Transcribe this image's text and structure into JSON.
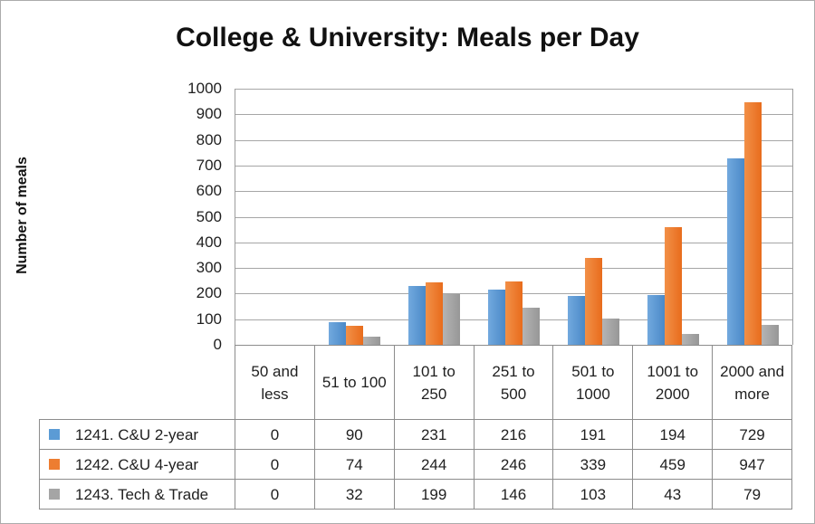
{
  "chart_data": {
    "type": "bar",
    "title": "College & University: Meals per Day",
    "ylabel": "Number of meals",
    "ylim": [
      0,
      1000
    ],
    "ytick_step": 100,
    "grid": "horizontal",
    "legend_position": "data-table-left",
    "categories": [
      "50 and less",
      "51 to 100",
      "101 to 250",
      "251 to 500",
      "501 to 1000",
      "1001 to 2000",
      "2000 and more"
    ],
    "series": [
      {
        "name": "1241. C&U 2-year",
        "color": "#5B9BD5",
        "color_light": "#72A9DE",
        "color_dark": "#4A89C8",
        "values": [
          0,
          90,
          231,
          216,
          191,
          194,
          729
        ]
      },
      {
        "name": "1242. C&U 4-year",
        "color": "#ED7D31",
        "color_light": "#F29048",
        "color_dark": "#E86C1C",
        "values": [
          0,
          74,
          244,
          246,
          339,
          459,
          947
        ]
      },
      {
        "name": "1243. Tech & Trade",
        "color": "#A5A5A5",
        "color_light": "#B4B4B4",
        "color_dark": "#979797",
        "values": [
          0,
          32,
          199,
          146,
          103,
          43,
          79
        ]
      }
    ]
  },
  "colors": {
    "gridline": "#A6A6A6",
    "axis_line": "#9C9C9C",
    "table_border": "#8C8C8C",
    "text": "#1F1F1F",
    "frame_border": "#ABABAB"
  }
}
